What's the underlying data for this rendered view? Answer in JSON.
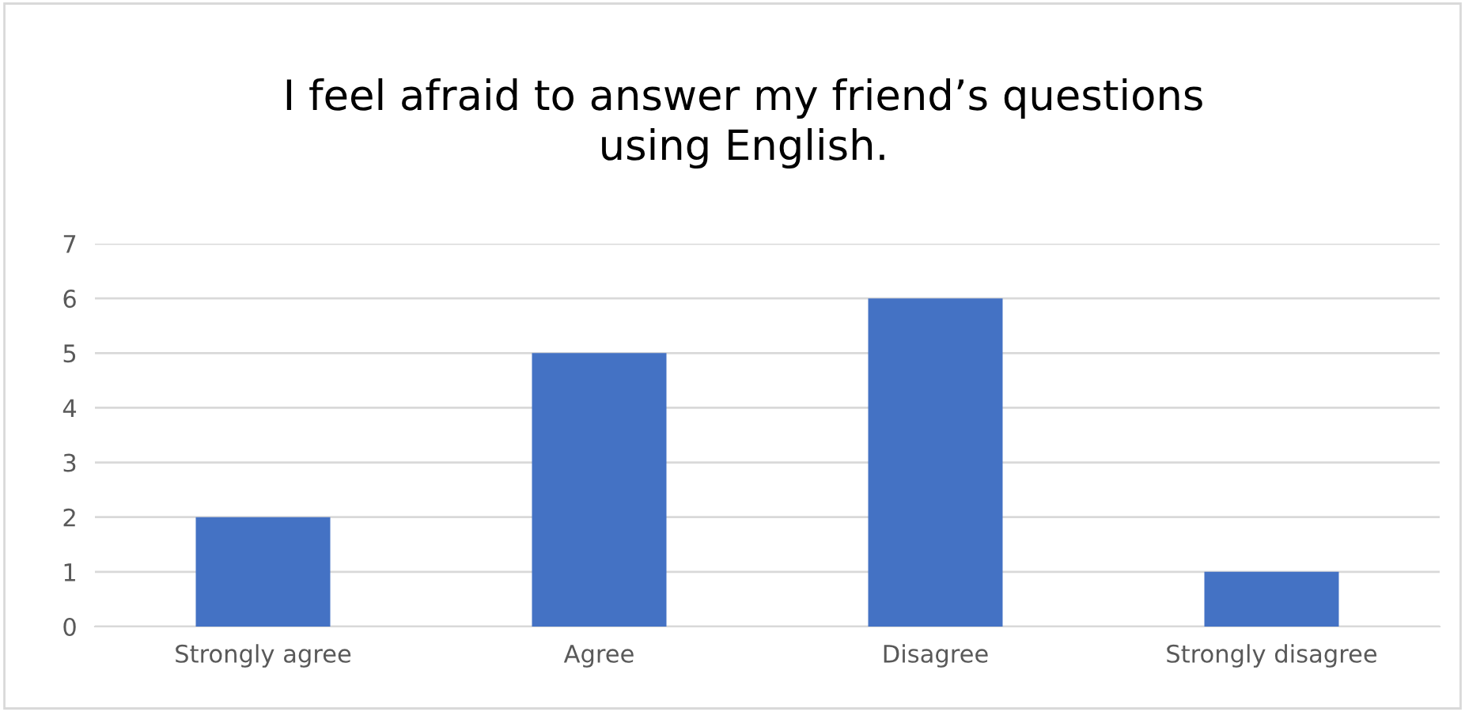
{
  "chart_data": {
    "type": "bar",
    "title": "I feel afraid to answer my friend’s questions\nusing English.",
    "categories": [
      "Strongly agree",
      "Agree",
      "Disagree",
      "Strongly disagree"
    ],
    "values": [
      2,
      5,
      6,
      1
    ],
    "color": "#4472c4",
    "ylim": [
      0,
      7
    ],
    "yticks": [
      0,
      1,
      2,
      3,
      4,
      5,
      6,
      7
    ],
    "grid": "y",
    "legend": false
  }
}
